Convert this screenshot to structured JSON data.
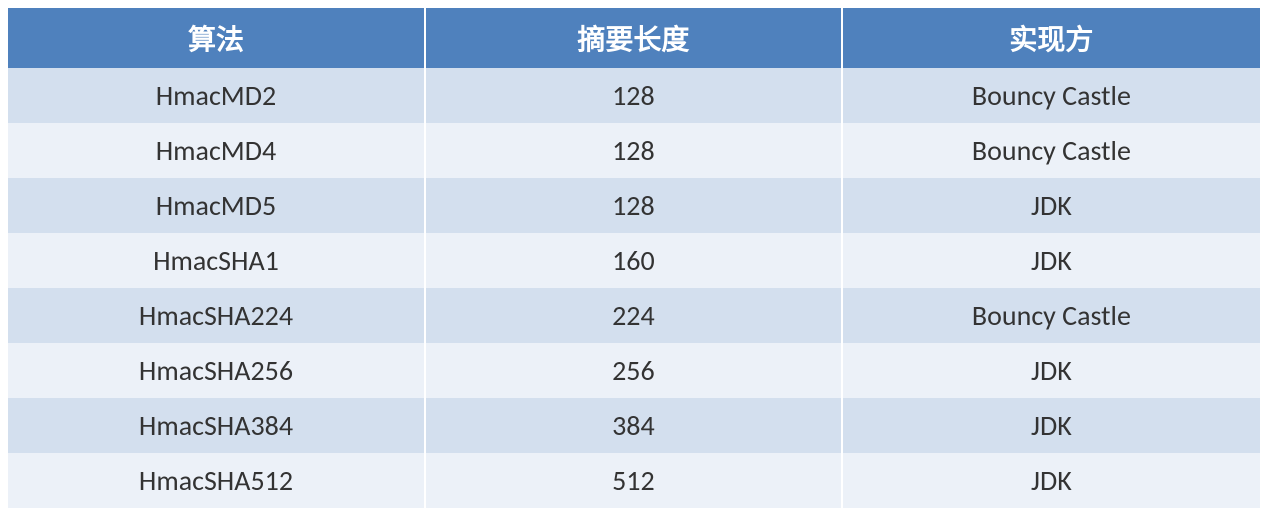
{
  "table": {
    "type": "table",
    "columns": [
      "算法",
      "摘要长度",
      "实现方"
    ],
    "rows": [
      [
        "HmacMD2",
        "128",
        "Bouncy Castle"
      ],
      [
        "HmacMD4",
        "128",
        "Bouncy Castle"
      ],
      [
        "HmacMD5",
        "128",
        "JDK"
      ],
      [
        "HmacSHA1",
        "160",
        "JDK"
      ],
      [
        "HmacSHA224",
        "224",
        "Bouncy Castle"
      ],
      [
        "HmacSHA256",
        "256",
        "JDK"
      ],
      [
        "HmacSHA384",
        "384",
        "JDK"
      ],
      [
        "HmacSHA512",
        "512",
        "JDK"
      ]
    ],
    "column_widths": [
      "33.3%",
      "33.3%",
      "33.4%"
    ],
    "header_background": "#4f81bd",
    "header_text_color": "#ffffff",
    "row_odd_background": "#d3dfee",
    "row_even_background": "#ecf1f8",
    "text_color": "#333333",
    "border_color": "#ffffff",
    "font_size_header": 28,
    "font_size_body": 28,
    "font_weight_header": "bold",
    "text_align": "center",
    "cell_padding": "10px 8px"
  }
}
